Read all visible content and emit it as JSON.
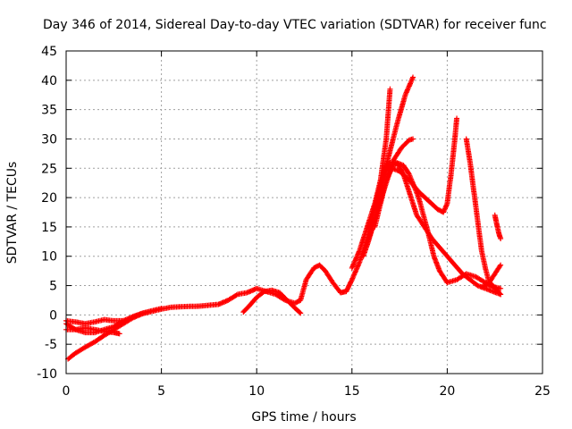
{
  "chart_data": {
    "type": "scatter",
    "title": "Day 346 of 2014, Sidereal Day-to-day VTEC variation (SDTVAR) for receiver func",
    "xlabel": "GPS time / hours",
    "ylabel": "SDTVAR / TECUs",
    "xlim": [
      0,
      25
    ],
    "ylim": [
      -10,
      45
    ],
    "x_ticks": [
      0,
      5,
      10,
      15,
      20,
      25
    ],
    "y_ticks": [
      -10,
      -5,
      0,
      5,
      10,
      15,
      20,
      25,
      30,
      35,
      40,
      45
    ],
    "grid": true,
    "marker": "+",
    "series_color": "#ff0000",
    "series": [
      {
        "name": "trace-1",
        "points": [
          [
            0.1,
            -7.5
          ],
          [
            0.5,
            -6.5
          ],
          [
            1.0,
            -5.5
          ],
          [
            1.5,
            -4.6
          ],
          [
            2.0,
            -3.5
          ],
          [
            2.5,
            -2.5
          ],
          [
            3.0,
            -1.5
          ],
          [
            3.5,
            -0.5
          ],
          [
            4.0,
            0.2
          ],
          [
            4.5,
            0.6
          ],
          [
            5.0,
            1.0
          ],
          [
            5.5,
            1.3
          ],
          [
            6.0,
            1.4
          ],
          [
            7.0,
            1.5
          ],
          [
            8.0,
            1.8
          ],
          [
            8.5,
            2.5
          ],
          [
            9.0,
            3.5
          ],
          [
            9.5,
            3.8
          ],
          [
            10.0,
            4.5
          ],
          [
            10.5,
            4.0
          ],
          [
            11.0,
            3.5
          ],
          [
            11.5,
            2.5
          ],
          [
            12.0,
            2.0
          ],
          [
            12.3,
            2.5
          ],
          [
            12.6,
            6.0
          ],
          [
            13.0,
            8.0
          ],
          [
            13.3,
            8.5
          ],
          [
            13.6,
            7.5
          ],
          [
            14.0,
            5.5
          ],
          [
            14.4,
            3.8
          ],
          [
            14.7,
            4.0
          ],
          [
            15.0,
            6.0
          ],
          [
            15.4,
            9.0
          ],
          [
            15.8,
            13.0
          ],
          [
            16.1,
            17.0
          ],
          [
            16.4,
            21.0
          ],
          [
            16.7,
            24.5
          ],
          [
            17.0,
            26.0
          ],
          [
            17.3,
            26.0
          ],
          [
            17.7,
            25.5
          ],
          [
            18.0,
            24.0
          ],
          [
            18.5,
            20.0
          ],
          [
            19.0,
            14.0
          ],
          [
            19.3,
            10.0
          ],
          [
            19.6,
            7.5
          ],
          [
            20.0,
            5.5
          ],
          [
            20.5,
            6.0
          ],
          [
            21.0,
            7.0
          ],
          [
            21.5,
            6.5
          ],
          [
            22.0,
            5.5
          ],
          [
            22.4,
            4.8
          ],
          [
            22.8,
            4.5
          ]
        ]
      },
      {
        "name": "trace-2",
        "points": [
          [
            0.0,
            -1.5
          ],
          [
            0.5,
            -2.5
          ],
          [
            1.0,
            -3.0
          ],
          [
            1.5,
            -3.0
          ],
          [
            2.0,
            -2.5
          ],
          [
            2.5,
            -2.0
          ],
          [
            3.0,
            -1.0
          ],
          [
            3.5,
            -0.3
          ],
          [
            4.0,
            0.3
          ],
          [
            4.5,
            0.7
          ],
          [
            5.0,
            1.1
          ]
        ]
      },
      {
        "name": "trace-3",
        "points": [
          [
            0.0,
            -2.5
          ],
          [
            0.5,
            -2.5
          ],
          [
            1.0,
            -2.2
          ],
          [
            1.5,
            -2.5
          ],
          [
            2.0,
            -2.8
          ],
          [
            2.5,
            -3.0
          ],
          [
            2.8,
            -3.2
          ]
        ]
      },
      {
        "name": "trace-4",
        "points": [
          [
            0.0,
            -1.0
          ],
          [
            0.5,
            -1.2
          ],
          [
            1.0,
            -1.5
          ],
          [
            1.5,
            -1.2
          ],
          [
            2.0,
            -0.8
          ],
          [
            2.5,
            -1.0
          ],
          [
            3.0,
            -1.0
          ]
        ]
      },
      {
        "name": "trace-5",
        "points": [
          [
            9.3,
            0.5
          ],
          [
            9.6,
            1.5
          ],
          [
            10.0,
            3.0
          ],
          [
            10.4,
            4.0
          ],
          [
            10.8,
            4.2
          ],
          [
            11.2,
            3.8
          ],
          [
            11.6,
            2.5
          ],
          [
            12.0,
            1.2
          ],
          [
            12.3,
            0.3
          ]
        ]
      },
      {
        "name": "trace-6",
        "points": [
          [
            15.0,
            8.0
          ],
          [
            15.4,
            11.0
          ],
          [
            15.8,
            15.0
          ],
          [
            16.2,
            19.0
          ],
          [
            16.5,
            23.0
          ],
          [
            16.8,
            30.0
          ],
          [
            17.0,
            38.5
          ]
        ]
      },
      {
        "name": "trace-7",
        "points": [
          [
            15.6,
            10.0
          ],
          [
            16.0,
            14.0
          ],
          [
            16.3,
            18.0
          ],
          [
            16.6,
            23.0
          ],
          [
            17.0,
            28.0
          ],
          [
            17.4,
            33.0
          ],
          [
            17.8,
            37.5
          ],
          [
            18.2,
            40.5
          ]
        ]
      },
      {
        "name": "trace-8",
        "points": [
          [
            15.8,
            12.0
          ],
          [
            16.3,
            17.5
          ],
          [
            16.8,
            22.5
          ],
          [
            17.2,
            26.5
          ],
          [
            17.6,
            28.5
          ],
          [
            18.0,
            29.8
          ],
          [
            18.2,
            30.0
          ]
        ]
      },
      {
        "name": "trace-9",
        "points": [
          [
            16.2,
            15.0
          ],
          [
            16.5,
            19.0
          ],
          [
            16.8,
            23.0
          ],
          [
            17.1,
            25.0
          ],
          [
            17.5,
            24.5
          ],
          [
            18.0,
            23.0
          ],
          [
            18.5,
            21.0
          ],
          [
            19.0,
            19.5
          ],
          [
            19.5,
            18.0
          ],
          [
            19.8,
            17.5
          ],
          [
            20.0,
            19.0
          ],
          [
            20.2,
            24.0
          ],
          [
            20.4,
            30.0
          ],
          [
            20.5,
            33.5
          ]
        ]
      },
      {
        "name": "trace-10",
        "points": [
          [
            16.5,
            20.0
          ],
          [
            16.8,
            23.0
          ],
          [
            17.1,
            25.5
          ],
          [
            17.4,
            25.8
          ],
          [
            17.7,
            24.0
          ],
          [
            18.0,
            21.0
          ],
          [
            18.4,
            17.0
          ],
          [
            18.8,
            15.0
          ],
          [
            19.2,
            13.0
          ],
          [
            19.6,
            11.5
          ],
          [
            20.0,
            10.0
          ],
          [
            20.4,
            8.5
          ],
          [
            20.8,
            7.0
          ],
          [
            21.2,
            6.0
          ],
          [
            21.6,
            5.0
          ],
          [
            22.0,
            4.5
          ],
          [
            22.4,
            4.0
          ],
          [
            22.8,
            3.5
          ]
        ]
      },
      {
        "name": "trace-11",
        "points": [
          [
            21.0,
            30.0
          ],
          [
            21.2,
            26.0
          ],
          [
            21.4,
            21.0
          ],
          [
            21.6,
            16.0
          ],
          [
            21.8,
            11.0
          ],
          [
            22.0,
            8.0
          ],
          [
            22.2,
            5.5
          ],
          [
            22.4,
            5.0
          ],
          [
            22.6,
            4.2
          ],
          [
            22.8,
            3.5
          ]
        ]
      },
      {
        "name": "trace-12",
        "points": [
          [
            22.5,
            17.0
          ],
          [
            22.6,
            15.5
          ],
          [
            22.7,
            14.0
          ],
          [
            22.8,
            13.0
          ]
        ]
      },
      {
        "name": "trace-13",
        "points": [
          [
            21.8,
            4.8
          ],
          [
            22.0,
            5.0
          ],
          [
            22.2,
            5.5
          ],
          [
            22.4,
            6.5
          ],
          [
            22.6,
            7.5
          ],
          [
            22.8,
            8.5
          ]
        ]
      }
    ]
  }
}
